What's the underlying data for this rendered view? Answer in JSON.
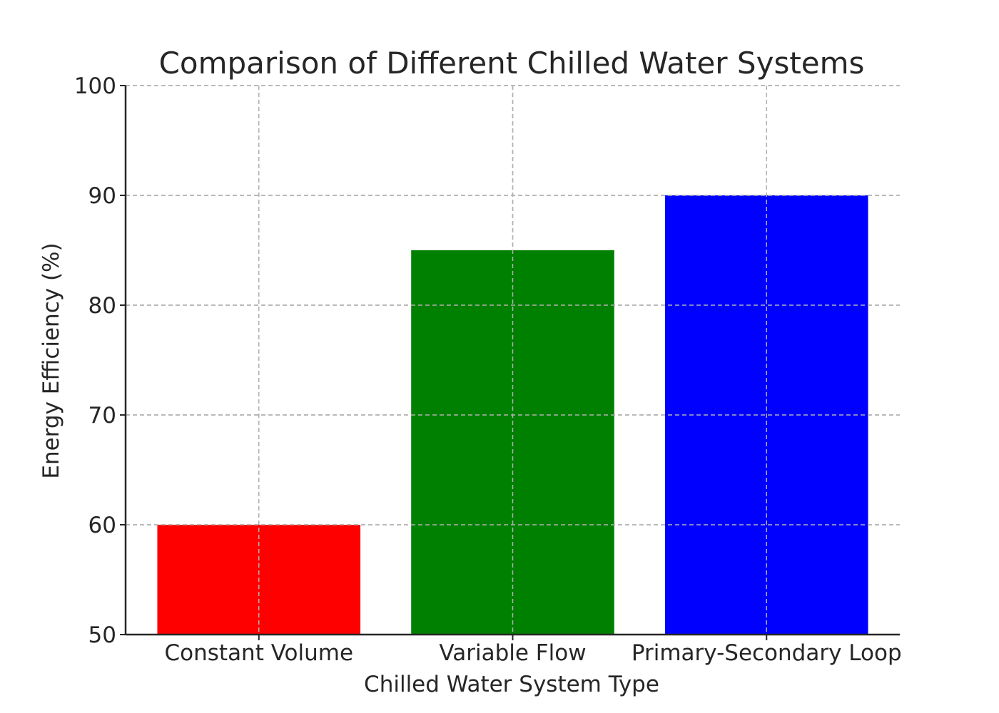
{
  "chart_data": {
    "type": "bar",
    "title": "Comparison of Different Chilled Water Systems",
    "xlabel": "Chilled Water System Type",
    "ylabel": "Energy Efficiency (%)",
    "categories": [
      "Constant Volume",
      "Variable Flow",
      "Primary-Secondary Loop"
    ],
    "values": [
      60,
      85,
      90
    ],
    "colors": [
      "#ff0000",
      "#008000",
      "#0000ff"
    ],
    "ylim": [
      50,
      100
    ],
    "yticks": [
      50,
      60,
      70,
      80,
      90,
      100
    ],
    "grid": true,
    "grid_style": "dashed",
    "legend": false
  }
}
